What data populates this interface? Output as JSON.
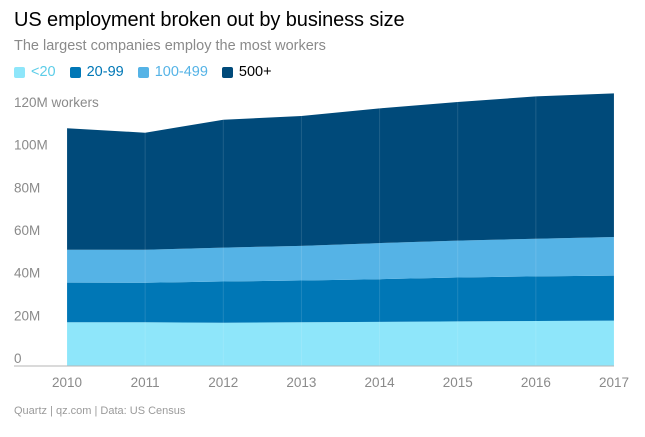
{
  "header": {
    "title": "US employment broken out by business size",
    "subtitle": "The largest companies employ the most workers"
  },
  "footer": {
    "source": "Quartz | qz.com | Data: US Census"
  },
  "chart_data": {
    "type": "area",
    "stacked": true,
    "title": "US employment broken out by business size",
    "subtitle": "The largest companies employ the most workers",
    "xlabel": "",
    "ylabel": "",
    "x": [
      2010,
      2011,
      2012,
      2013,
      2014,
      2015,
      2016,
      2017
    ],
    "xlim": [
      2010,
      2017
    ],
    "ylim": [
      0,
      128
    ],
    "ytick_values": [
      0,
      20,
      40,
      60,
      80,
      100,
      120
    ],
    "ytick_labels": [
      "0",
      "20M",
      "40M",
      "60M",
      "80M",
      "100M",
      "120M workers"
    ],
    "xtick_labels": [
      "2010",
      "2011",
      "2012",
      "2013",
      "2014",
      "2015",
      "2016",
      "2017"
    ],
    "grid": true,
    "legend_position": "top-left",
    "series": [
      {
        "name": "<20",
        "color": "#8ee6fa",
        "values": [
          20.5,
          20.5,
          20.3,
          20.5,
          20.7,
          20.9,
          21.1,
          21.3
        ]
      },
      {
        "name": "20-99",
        "color": "#0077b6",
        "values": [
          18.6,
          18.5,
          19.3,
          19.6,
          20.0,
          20.6,
          20.9,
          21.1
        ]
      },
      {
        "name": "100-499",
        "color": "#55b3e6",
        "values": [
          15.4,
          15.5,
          15.9,
          16.2,
          16.9,
          17.3,
          17.7,
          18.1
        ]
      },
      {
        "name": "500+",
        "color": "#004a7a",
        "values": [
          57.0,
          54.9,
          60.0,
          60.9,
          63.2,
          65.0,
          66.7,
          67.3
        ]
      }
    ]
  }
}
